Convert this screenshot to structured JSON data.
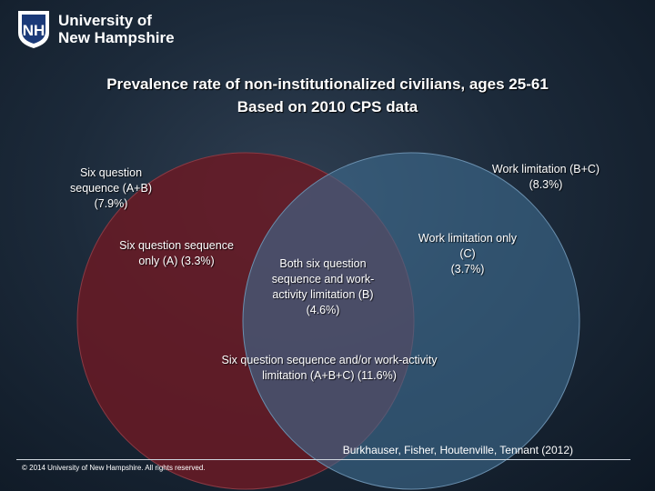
{
  "header": {
    "logo_mark": "NH",
    "university_line1": "University of",
    "university_line2": "New Hampshire"
  },
  "title": {
    "line1": "Prevalence rate of non-institutionalized civilians, ages 25-61",
    "line2": "Based on 2010 CPS data"
  },
  "venn": {
    "left_set": {
      "label_lines": [
        "Six question",
        "sequence (A+B)",
        "(7.9%)"
      ],
      "color": "#6a1a24"
    },
    "right_set": {
      "label_lines": [
        "Work limitation (B+C)",
        "(8.3%)"
      ],
      "color": "#3e6a8e"
    },
    "left_only_lines": [
      "Six question sequence",
      "only (A) (3.3%)"
    ],
    "intersection_lines": [
      "Both six question",
      "sequence and work-",
      "activity limitation (B)",
      "(4.6%)"
    ],
    "right_only_lines": [
      "Work limitation only",
      "(C)",
      "(3.7%)"
    ],
    "union_lines": [
      "Six question sequence and/or work-activity",
      "limitation (A+B+C) (11.6%)"
    ]
  },
  "footer": {
    "citation": "Burkhauser, Fisher, Houtenville, Tennant (2012)",
    "copyright": "© 2014 University of New Hampshire. All rights reserved."
  }
}
